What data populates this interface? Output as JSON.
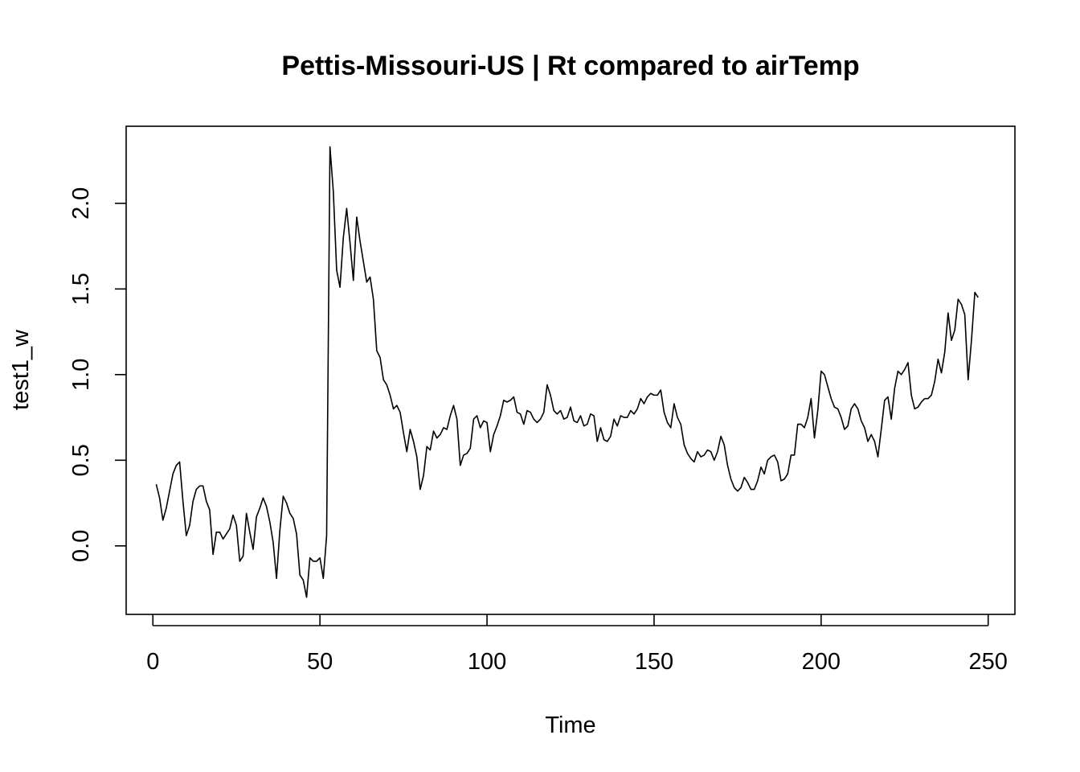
{
  "chart_data": {
    "type": "line",
    "title": "Pettis-Missouri-US | Rt compared to airTemp",
    "xlabel": "Time",
    "ylabel": "test1_w",
    "xlim": [
      -8,
      258
    ],
    "ylim": [
      -0.4,
      2.45
    ],
    "x_ticks": [
      0,
      50,
      100,
      150,
      200,
      250
    ],
    "y_ticks": [
      0.0,
      0.5,
      1.0,
      1.5,
      2.0
    ],
    "x_tick_labels": [
      "0",
      "50",
      "100",
      "150",
      "200",
      "250"
    ],
    "y_tick_labels": [
      "0.0",
      "0.5",
      "1.0",
      "1.5",
      "2.0"
    ],
    "grid": false,
    "series": [
      {
        "x_start": 1,
        "values": [
          0.36,
          0.28,
          0.15,
          0.22,
          0.32,
          0.42,
          0.47,
          0.49,
          0.26,
          0.06,
          0.12,
          0.26,
          0.33,
          0.35,
          0.35,
          0.26,
          0.21,
          -0.05,
          0.08,
          0.08,
          0.04,
          0.07,
          0.1,
          0.18,
          0.12,
          -0.09,
          -0.06,
          0.19,
          0.08,
          -0.02,
          0.17,
          0.22,
          0.28,
          0.23,
          0.14,
          0.02,
          -0.19,
          0.09,
          0.29,
          0.25,
          0.19,
          0.16,
          0.07,
          -0.17,
          -0.2,
          -0.3,
          -0.07,
          -0.09,
          -0.09,
          -0.07,
          -0.19,
          0.06,
          2.33,
          2.07,
          1.61,
          1.51,
          1.8,
          1.97,
          1.77,
          1.55,
          1.92,
          1.78,
          1.66,
          1.54,
          1.57,
          1.44,
          1.14,
          1.1,
          0.97,
          0.94,
          0.88,
          0.8,
          0.82,
          0.78,
          0.66,
          0.55,
          0.68,
          0.61,
          0.52,
          0.33,
          0.41,
          0.58,
          0.56,
          0.67,
          0.63,
          0.65,
          0.69,
          0.68,
          0.76,
          0.82,
          0.74,
          0.47,
          0.53,
          0.54,
          0.57,
          0.74,
          0.76,
          0.69,
          0.73,
          0.72,
          0.55,
          0.65,
          0.7,
          0.76,
          0.85,
          0.84,
          0.85,
          0.87,
          0.78,
          0.77,
          0.71,
          0.79,
          0.78,
          0.74,
          0.72,
          0.74,
          0.78,
          0.94,
          0.88,
          0.79,
          0.77,
          0.79,
          0.74,
          0.75,
          0.81,
          0.73,
          0.72,
          0.76,
          0.7,
          0.71,
          0.77,
          0.76,
          0.61,
          0.69,
          0.62,
          0.61,
          0.64,
          0.74,
          0.7,
          0.76,
          0.75,
          0.75,
          0.79,
          0.77,
          0.8,
          0.86,
          0.83,
          0.87,
          0.89,
          0.88,
          0.88,
          0.91,
          0.78,
          0.72,
          0.69,
          0.83,
          0.75,
          0.71,
          0.59,
          0.54,
          0.51,
          0.49,
          0.55,
          0.52,
          0.53,
          0.56,
          0.55,
          0.5,
          0.55,
          0.64,
          0.59,
          0.47,
          0.39,
          0.34,
          0.32,
          0.34,
          0.4,
          0.37,
          0.33,
          0.33,
          0.38,
          0.46,
          0.42,
          0.5,
          0.52,
          0.53,
          0.49,
          0.38,
          0.39,
          0.42,
          0.53,
          0.53,
          0.71,
          0.71,
          0.69,
          0.75,
          0.86,
          0.63,
          0.79,
          1.02,
          1.0,
          0.93,
          0.86,
          0.81,
          0.8,
          0.75,
          0.68,
          0.7,
          0.8,
          0.83,
          0.8,
          0.73,
          0.69,
          0.61,
          0.65,
          0.61,
          0.52,
          0.68,
          0.85,
          0.87,
          0.74,
          0.92,
          1.02,
          1.0,
          1.03,
          1.07,
          0.88,
          0.8,
          0.81,
          0.84,
          0.86,
          0.86,
          0.88,
          0.96,
          1.09,
          1.01,
          1.13,
          1.36,
          1.2,
          1.26,
          1.44,
          1.41,
          1.35,
          0.97,
          1.2,
          1.48,
          1.45
        ]
      }
    ]
  }
}
